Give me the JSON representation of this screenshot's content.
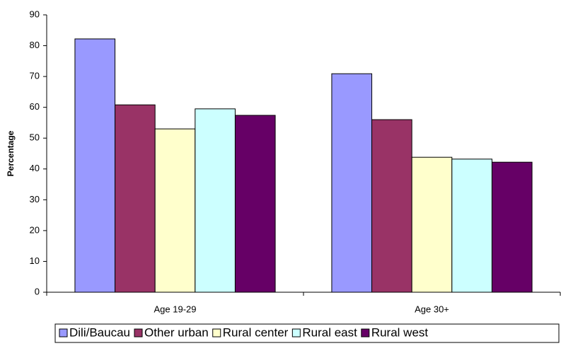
{
  "chart_data": {
    "type": "bar",
    "y_label": "Percentage",
    "categories": [
      "Age 19-29",
      "Age 30+"
    ],
    "series": [
      {
        "name": "Dili/Baucau",
        "color": "#9999ff",
        "values": [
          82.2,
          70.9
        ]
      },
      {
        "name": "Other urban",
        "color": "#993366",
        "values": [
          60.8,
          56.0
        ]
      },
      {
        "name": "Rural center",
        "color": "#ffffcc",
        "values": [
          53.0,
          43.8
        ]
      },
      {
        "name": "Rural east",
        "color": "#ccffff",
        "values": [
          59.5,
          43.2
        ]
      },
      {
        "name": "Rural west",
        "color": "#660066",
        "values": [
          57.4,
          42.2
        ]
      }
    ],
    "ylim": [
      0,
      90
    ],
    "yticks": [
      0,
      10,
      20,
      30,
      40,
      50,
      60,
      70,
      80,
      90
    ],
    "grid": false,
    "legend": "bottom"
  }
}
